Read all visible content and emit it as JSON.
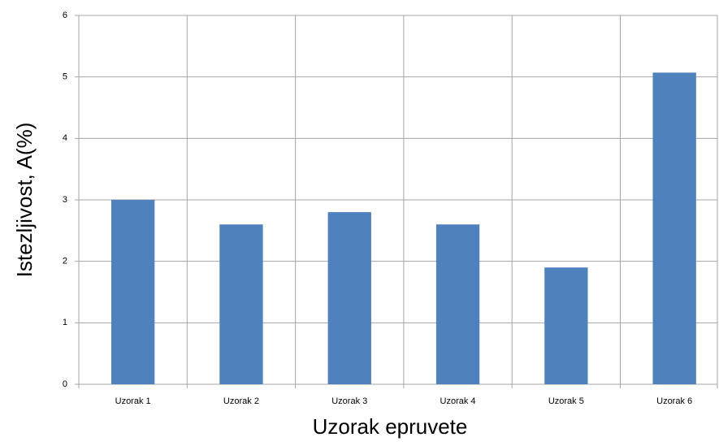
{
  "chart_data": {
    "type": "bar",
    "categories": [
      "Uzorak 1",
      "Uzorak 2",
      "Uzorak 3",
      "Uzorak 4",
      "Uzorak 5",
      "Uzorak 6"
    ],
    "values": [
      3.0,
      2.6,
      2.8,
      2.6,
      1.9,
      5.07
    ],
    "color": "#4f81bd",
    "ylim": [
      0,
      6
    ],
    "yticks": [
      0,
      1,
      2,
      3,
      4,
      5,
      6
    ],
    "grid": true,
    "xlabel": "Uzorak epruvete",
    "ylabel": "Istezljivost, A(%)"
  }
}
